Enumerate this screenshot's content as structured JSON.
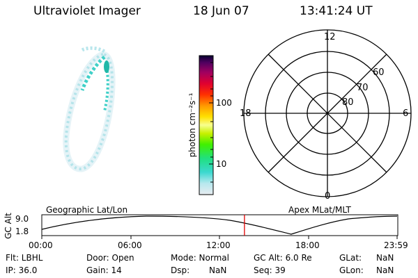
{
  "header": {
    "instrument": "Ultraviolet Imager",
    "date": "18 Jun 07",
    "time": "13:41:24 UT"
  },
  "colorbar": {
    "unit_label": "photon cm⁻²s⁻¹",
    "ticks": [
      "100",
      "10"
    ]
  },
  "polar_plot": {
    "mlt_labels": {
      "top": "12",
      "left": "18",
      "right": "6",
      "bottom": "0"
    },
    "lat_labels": [
      "60",
      "70",
      "80"
    ]
  },
  "timeline": {
    "ylabel": "GC Alt",
    "ymax": "9.0",
    "ymin": "1.8",
    "left_caption": "Geographic Lat/Lon",
    "right_caption": "Apex MLat/MLT",
    "x_ticks": [
      "00:00",
      "06:00",
      "12:00",
      "18:00",
      "23:59"
    ],
    "current_time_hours": 13.69,
    "marker_color": "#e00000"
  },
  "status": {
    "filter": "Flt: LBHL",
    "ip": "IP: 36.0",
    "door": "Door: Open",
    "gain": "Gain: 14",
    "mode": "Mode: Normal",
    "dsp_label": "Dsp:",
    "dsp_value": "NaN",
    "gc_alt": "GC Alt: 6.0 Re",
    "seq": "Seq: 39",
    "glat_label": "GLat:",
    "glat_value": "NaN",
    "glon_label": "GLon:",
    "glon_value": "NaN"
  }
}
